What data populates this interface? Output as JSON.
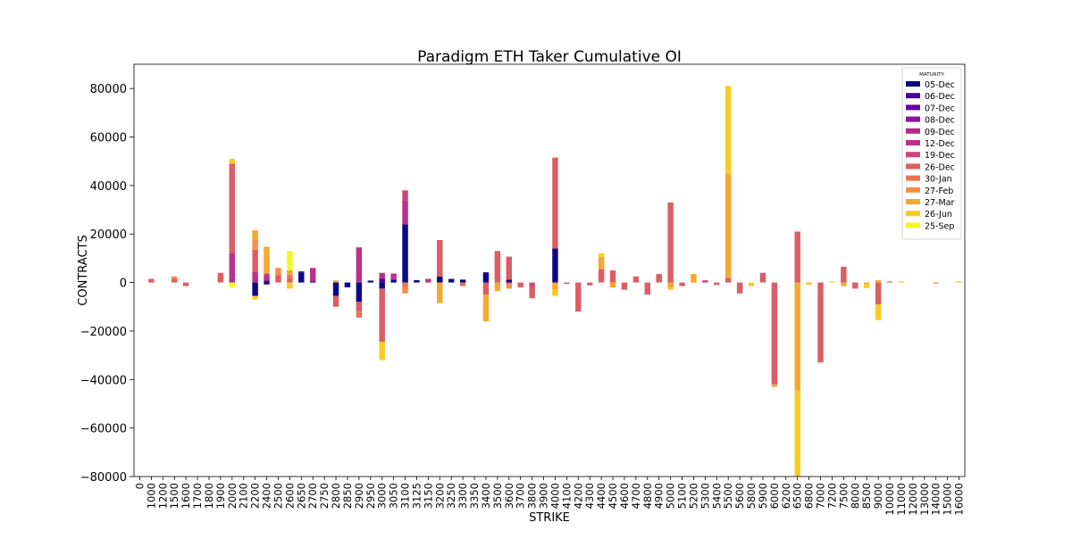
{
  "chart_data": {
    "type": "bar",
    "stacked": true,
    "title": "Paradigm ETH Taker Cumulative OI",
    "xlabel": "STRIKE",
    "ylabel": "CONTRACTS",
    "ylim": [
      -80000,
      90000
    ],
    "yticks": [
      -80000,
      -60000,
      -40000,
      -20000,
      0,
      20000,
      40000,
      60000,
      80000
    ],
    "ytick_labels": [
      "−80000",
      "−60000",
      "−40000",
      "−20000",
      "0",
      "20000",
      "40000",
      "60000",
      "80000"
    ],
    "grid": false,
    "legend_position": "top-right",
    "legend_title": "MATURITY",
    "categories": [
      "0",
      "1000",
      "1200",
      "1500",
      "1600",
      "1700",
      "1800",
      "1900",
      "2000",
      "2100",
      "2200",
      "2400",
      "2500",
      "2600",
      "2650",
      "2700",
      "2750",
      "2800",
      "2850",
      "2900",
      "2950",
      "3000",
      "3050",
      "3100",
      "3125",
      "3150",
      "3200",
      "3250",
      "3300",
      "3350",
      "3400",
      "3500",
      "3600",
      "3700",
      "3800",
      "3900",
      "4000",
      "4100",
      "4200",
      "4300",
      "4400",
      "4500",
      "4600",
      "4700",
      "4800",
      "4900",
      "5000",
      "5100",
      "5200",
      "5300",
      "5400",
      "5500",
      "5600",
      "5800",
      "5900",
      "6000",
      "6200",
      "6500",
      "6800",
      "7000",
      "7200",
      "7500",
      "8000",
      "8500",
      "9000",
      "10000",
      "11000",
      "12000",
      "13000",
      "14000",
      "15000",
      "16000"
    ],
    "series": [
      {
        "name": "05-Dec",
        "color": "#0d0887",
        "values": [
          0,
          0,
          0,
          0,
          0,
          0,
          0,
          0,
          0,
          0,
          -5500,
          -800,
          0,
          0,
          4200,
          500,
          0,
          -5500,
          -2000,
          -8000,
          800,
          -2500,
          1200,
          24000,
          1000,
          0,
          2500,
          1500,
          1200,
          0,
          4200,
          0,
          1200,
          0,
          0,
          0,
          14000,
          0,
          0,
          0,
          0,
          0,
          0,
          0,
          0,
          0,
          0,
          0,
          0,
          0,
          0,
          0,
          0,
          0,
          0,
          0,
          0,
          0,
          0,
          0,
          0,
          0,
          0,
          0,
          0,
          0,
          0,
          0,
          0,
          0,
          0,
          0
        ]
      },
      {
        "name": "06-Dec",
        "color": "#41049d",
        "values": [
          0,
          0,
          0,
          0,
          0,
          0,
          0,
          0,
          0,
          0,
          0,
          800,
          0,
          0,
          400,
          0,
          0,
          0,
          0,
          0,
          0,
          1500,
          0,
          0,
          0,
          0,
          0,
          0,
          0,
          0,
          0,
          0,
          0,
          0,
          0,
          0,
          0,
          0,
          0,
          0,
          0,
          0,
          0,
          0,
          0,
          0,
          0,
          0,
          0,
          0,
          0,
          0,
          0,
          0,
          0,
          0,
          0,
          0,
          0,
          0,
          0,
          0,
          0,
          0,
          0,
          0,
          0,
          0,
          0,
          0,
          0,
          0
        ]
      },
      {
        "name": "07-Dec",
        "color": "#6a00a8",
        "values": [
          0,
          0,
          0,
          0,
          0,
          0,
          0,
          0,
          0,
          0,
          0,
          0,
          0,
          0,
          0,
          0,
          0,
          0,
          0,
          0,
          0,
          0,
          0,
          0,
          0,
          0,
          0,
          0,
          0,
          0,
          0,
          0,
          0,
          0,
          0,
          0,
          0,
          0,
          0,
          0,
          0,
          0,
          0,
          0,
          0,
          0,
          0,
          0,
          0,
          0,
          0,
          0,
          0,
          0,
          0,
          0,
          0,
          0,
          0,
          0,
          0,
          0,
          0,
          0,
          0,
          0,
          0,
          0,
          0,
          0,
          0,
          0
        ]
      },
      {
        "name": "08-Dec",
        "color": "#8f0da4",
        "values": [
          0,
          0,
          0,
          0,
          0,
          0,
          0,
          0,
          0,
          0,
          0,
          0,
          0,
          0,
          0,
          0,
          0,
          0,
          0,
          0,
          0,
          0,
          0,
          0,
          0,
          0,
          0,
          0,
          0,
          0,
          0,
          0,
          0,
          0,
          0,
          0,
          0,
          0,
          0,
          0,
          0,
          0,
          0,
          0,
          0,
          0,
          0,
          0,
          0,
          0,
          0,
          0,
          0,
          0,
          0,
          0,
          0,
          0,
          0,
          0,
          0,
          0,
          0,
          0,
          0,
          0,
          0,
          0,
          0,
          0,
          0,
          0
        ]
      },
      {
        "name": "09-Dec",
        "color": "#b12a90",
        "values": [
          0,
          0,
          0,
          0,
          0,
          0,
          0,
          0,
          2000,
          0,
          0,
          0,
          0,
          0,
          0,
          0,
          0,
          0,
          0,
          0,
          0,
          0,
          0,
          0,
          0,
          0,
          0,
          0,
          0,
          0,
          0,
          0,
          0,
          0,
          0,
          0,
          0,
          0,
          0,
          0,
          0,
          0,
          0,
          0,
          0,
          0,
          0,
          0,
          0,
          0,
          0,
          0,
          0,
          0,
          0,
          0,
          0,
          0,
          0,
          0,
          0,
          0,
          0,
          0,
          0,
          0,
          0,
          0,
          0,
          0,
          0,
          0
        ]
      },
      {
        "name": "12-Dec",
        "color": "#b83289",
        "values": [
          0,
          0,
          0,
          0,
          0,
          0,
          0,
          0,
          10000,
          0,
          4500,
          2000,
          0,
          0,
          0,
          5500,
          0,
          0,
          0,
          14500,
          0,
          2500,
          2500,
          10000,
          0,
          1500,
          0,
          0,
          0,
          0,
          0,
          0,
          0,
          0,
          0,
          0,
          0,
          0,
          0,
          0,
          0,
          0,
          0,
          0,
          0,
          0,
          0,
          0,
          0,
          0,
          0,
          0,
          0,
          0,
          0,
          0,
          0,
          0,
          0,
          0,
          0,
          0,
          0,
          0,
          0,
          0,
          0,
          0,
          0,
          0,
          0,
          0
        ]
      },
      {
        "name": "19-Dec",
        "color": "#cc4778",
        "values": [
          0,
          0,
          0,
          0,
          0,
          0,
          0,
          0,
          0,
          0,
          0,
          1000,
          0,
          0,
          0,
          0,
          0,
          0,
          0,
          0,
          0,
          0,
          0,
          4000,
          0,
          0,
          0,
          0,
          0,
          0,
          0,
          0,
          0,
          0,
          -2000,
          0,
          0,
          0,
          0,
          0,
          0,
          0,
          0,
          0,
          0,
          0,
          0,
          0,
          0,
          900,
          0,
          0,
          0,
          0,
          0,
          0,
          0,
          0,
          0,
          0,
          0,
          0,
          0,
          0,
          0,
          0,
          0,
          0,
          0,
          0,
          0,
          0
        ]
      },
      {
        "name": "26-Dec",
        "color": "#dc5e64",
        "values": [
          0,
          1500,
          0,
          1500,
          -1500,
          0,
          0,
          4000,
          37000,
          0,
          9000,
          0,
          3000,
          1500,
          0,
          0,
          0,
          -4500,
          0,
          -4000,
          0,
          -22000,
          0,
          0,
          0,
          0,
          15000,
          0,
          0,
          0,
          -5000,
          13000,
          9500,
          -2000,
          -4500,
          0,
          37500,
          -600,
          -12000,
          -1200,
          5500,
          5000,
          -3000,
          2500,
          -5000,
          3500,
          33000,
          -1500,
          0,
          0,
          -1000,
          2000,
          -4500,
          0,
          4000,
          -42000,
          0,
          21000,
          0,
          -33000,
          0,
          6500,
          -2500,
          0,
          -9000,
          0,
          0,
          0,
          0,
          0,
          0,
          0
        ]
      },
      {
        "name": "30-Jan",
        "color": "#e87550",
        "values": [
          0,
          0,
          0,
          0,
          0,
          0,
          0,
          0,
          0,
          0,
          0,
          0,
          0,
          1500,
          0,
          0,
          0,
          0,
          0,
          -2500,
          0,
          0,
          0,
          -2000,
          0,
          0,
          0,
          0,
          -1500,
          0,
          0,
          0,
          -1000,
          0,
          0,
          0,
          0,
          0,
          0,
          0,
          0,
          0,
          0,
          0,
          0,
          0,
          0,
          0,
          0,
          0,
          0,
          0,
          0,
          0,
          0,
          0,
          0,
          0,
          0,
          0,
          0,
          0,
          0,
          0,
          0,
          500,
          0,
          0,
          0,
          0,
          0,
          0
        ]
      },
      {
        "name": "27-Feb",
        "color": "#f48f45",
        "values": [
          0,
          0,
          0,
          1000,
          0,
          0,
          0,
          0,
          0,
          0,
          4000,
          0,
          3000,
          0,
          0,
          0,
          0,
          800,
          0,
          0,
          0,
          0,
          0,
          -2500,
          0,
          0,
          0,
          0,
          0,
          0,
          0,
          0,
          -1500,
          0,
          0,
          0,
          0,
          0,
          0,
          0,
          0,
          0,
          0,
          0,
          0,
          0,
          0,
          0,
          0,
          0,
          0,
          0,
          0,
          0,
          0,
          0,
          0,
          0,
          0,
          0,
          0,
          0,
          0,
          0,
          0,
          0,
          0,
          0,
          0,
          0,
          0,
          0
        ]
      },
      {
        "name": "27-Mar",
        "color": "#f5a831",
        "values": [
          0,
          0,
          0,
          0,
          0,
          0,
          0,
          0,
          0,
          0,
          4000,
          11000,
          0,
          2000,
          0,
          0,
          0,
          0,
          0,
          0,
          0,
          0,
          0,
          0,
          0,
          0,
          -8500,
          0,
          0,
          0,
          -11000,
          -3500,
          0,
          0,
          0,
          0,
          -3000,
          0,
          0,
          0,
          5000,
          -2000,
          0,
          0,
          0,
          0,
          -2000,
          0,
          3500,
          0,
          0,
          43000,
          0,
          0,
          0,
          -1000,
          0,
          -44500,
          0,
          0,
          0,
          -1500,
          0,
          -800,
          1000,
          0,
          0,
          0,
          0,
          -500,
          0,
          0
        ]
      },
      {
        "name": "26-Jun",
        "color": "#f9cb24",
        "values": [
          0,
          0,
          0,
          0,
          0,
          0,
          0,
          0,
          2000,
          0,
          -1500,
          0,
          0,
          -2500,
          0,
          0,
          0,
          0,
          0,
          0,
          0,
          -7500,
          0,
          0,
          0,
          0,
          0,
          0,
          0,
          0,
          0,
          0,
          0,
          0,
          0,
          0,
          -2500,
          0,
          0,
          0,
          1500,
          0,
          0,
          0,
          0,
          0,
          -1000,
          0,
          0,
          0,
          0,
          36000,
          0,
          -1500,
          0,
          0,
          0,
          -36000,
          -1000,
          0,
          500,
          0,
          0,
          -1500,
          -6500,
          0,
          500,
          0,
          0,
          0,
          0,
          500
        ]
      },
      {
        "name": "25-Sep",
        "color": "#f0f921",
        "values": [
          0,
          0,
          0,
          0,
          0,
          0,
          0,
          0,
          -2000,
          0,
          0,
          0,
          0,
          8000,
          0,
          0,
          0,
          0,
          0,
          0,
          0,
          0,
          0,
          0,
          0,
          0,
          0,
          0,
          0,
          0,
          0,
          0,
          0,
          0,
          0,
          0,
          0,
          0,
          0,
          0,
          0,
          0,
          0,
          0,
          0,
          0,
          0,
          0,
          0,
          0,
          0,
          0,
          0,
          0,
          0,
          0,
          0,
          0,
          0,
          0,
          0,
          0,
          0,
          0,
          0,
          0,
          0,
          0,
          0,
          0,
          0,
          0
        ]
      }
    ]
  }
}
